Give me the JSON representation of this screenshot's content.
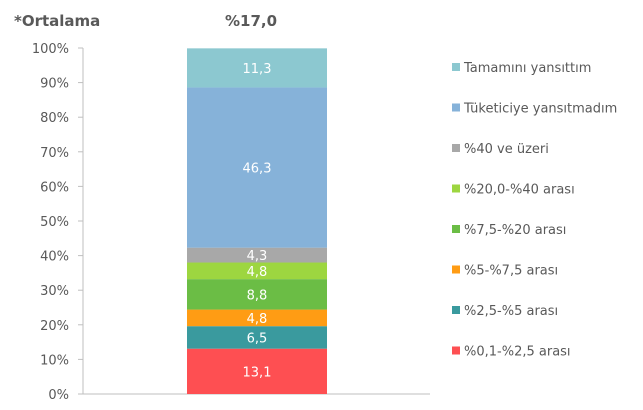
{
  "header": {
    "left": "*Ortalama",
    "right": "%17,0"
  },
  "chart_data": {
    "type": "bar",
    "stacked": true,
    "title": "",
    "xlabel": "",
    "ylabel": "",
    "ylim": [
      0,
      100
    ],
    "yticks": [
      "0%",
      "10%",
      "20%",
      "30%",
      "40%",
      "50%",
      "60%",
      "70%",
      "80%",
      "90%",
      "100%"
    ],
    "grid": false,
    "legend_position": "right",
    "series": [
      {
        "name": "%0,1-%2,5 arası",
        "value": 13.1,
        "label": "13,1",
        "color": "#fe4f52"
      },
      {
        "name": "%2,5-%5 arası",
        "value": 6.5,
        "label": "6,5",
        "color": "#3a9a9e"
      },
      {
        "name": "%5-%7,5 arası",
        "value": 4.8,
        "label": "4,8",
        "color": "#ff9c14"
      },
      {
        "name": "%7,5-%20 arası",
        "value": 8.8,
        "label": "8,8",
        "color": "#6bbd45"
      },
      {
        "name": "%20,0-%40 arası",
        "value": 4.8,
        "label": "4,8",
        "color": "#9dd640"
      },
      {
        "name": "%40 ve üzeri",
        "value": 4.3,
        "label": "4,3",
        "color": "#a8a8a8"
      },
      {
        "name": "Tüketiciye yansıtmadım",
        "value": 46.3,
        "label": "46,3",
        "color": "#86b2d9"
      },
      {
        "name": "Tamamını yansıttım",
        "value": 11.3,
        "label": "11,3",
        "color": "#8cc8d0"
      }
    ]
  }
}
